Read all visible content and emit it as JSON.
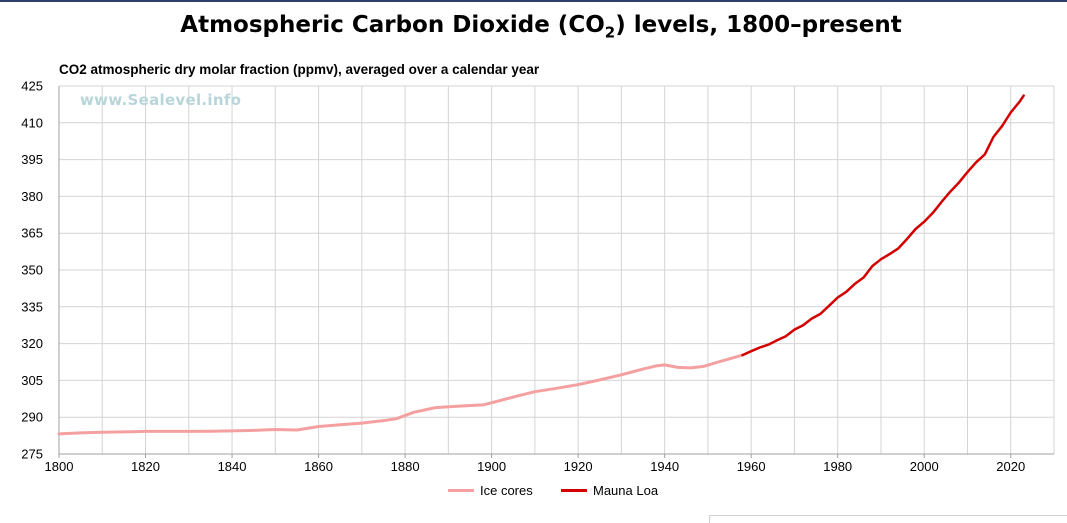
{
  "title_main": "Atmospheric Carbon Dioxide (CO",
  "title_sub": "2",
  "title_end": ") levels, 1800–present",
  "watermark": "www.Sealevel.info",
  "chart_data": {
    "type": "line",
    "ylabel": "CO2 atmospheric dry molar fraction (ppmv), averaged over a calendar year",
    "xlim": [
      1800,
      2030
    ],
    "ylim": [
      275,
      425
    ],
    "xticks": [
      1800,
      1820,
      1840,
      1860,
      1880,
      1900,
      1920,
      1940,
      1960,
      1980,
      2000,
      2020
    ],
    "yticks": [
      275,
      290,
      305,
      320,
      335,
      350,
      365,
      380,
      395,
      410,
      425
    ],
    "grid": true,
    "legend_position": "bottom-center",
    "series": [
      {
        "name": "Ice cores",
        "color": "#f5a0a0",
        "x": [
          1800,
          1805,
          1810,
          1815,
          1820,
          1825,
          1830,
          1835,
          1840,
          1845,
          1850,
          1855,
          1860,
          1865,
          1870,
          1875,
          1878,
          1882,
          1887,
          1892,
          1898,
          1902,
          1906,
          1910,
          1915,
          1920,
          1925,
          1930,
          1935,
          1938,
          1940,
          1943,
          1946,
          1949,
          1952,
          1955,
          1958
        ],
        "values": [
          283.2,
          283.6,
          283.9,
          284.0,
          284.2,
          284.2,
          284.2,
          284.3,
          284.4,
          284.6,
          285.0,
          284.8,
          286.2,
          286.9,
          287.6,
          288.6,
          289.4,
          292.0,
          293.9,
          294.5,
          295.0,
          296.8,
          298.7,
          300.4,
          301.8,
          303.3,
          305.2,
          307.3,
          309.6,
          310.9,
          311.3,
          310.3,
          310.1,
          310.7,
          312.3,
          313.8,
          315.3
        ]
      },
      {
        "name": "Mauna Loa",
        "color": "#d40000",
        "x": [
          1958,
          1960,
          1962,
          1964,
          1966,
          1968,
          1970,
          1972,
          1974,
          1976,
          1978,
          1980,
          1982,
          1984,
          1986,
          1988,
          1990,
          1992,
          1994,
          1996,
          1998,
          2000,
          2002,
          2004,
          2006,
          2008,
          2010,
          2012,
          2014,
          2016,
          2018,
          2020,
          2022,
          2023
        ],
        "values": [
          315.3,
          316.9,
          318.4,
          319.6,
          321.4,
          323.0,
          325.7,
          327.5,
          330.2,
          332.1,
          335.4,
          338.8,
          341.1,
          344.4,
          347.0,
          351.6,
          354.4,
          356.5,
          358.8,
          362.6,
          366.7,
          369.7,
          373.3,
          377.7,
          381.9,
          385.6,
          389.9,
          393.9,
          397.1,
          404.2,
          408.7,
          414.2,
          418.5,
          421.1
        ]
      }
    ]
  }
}
